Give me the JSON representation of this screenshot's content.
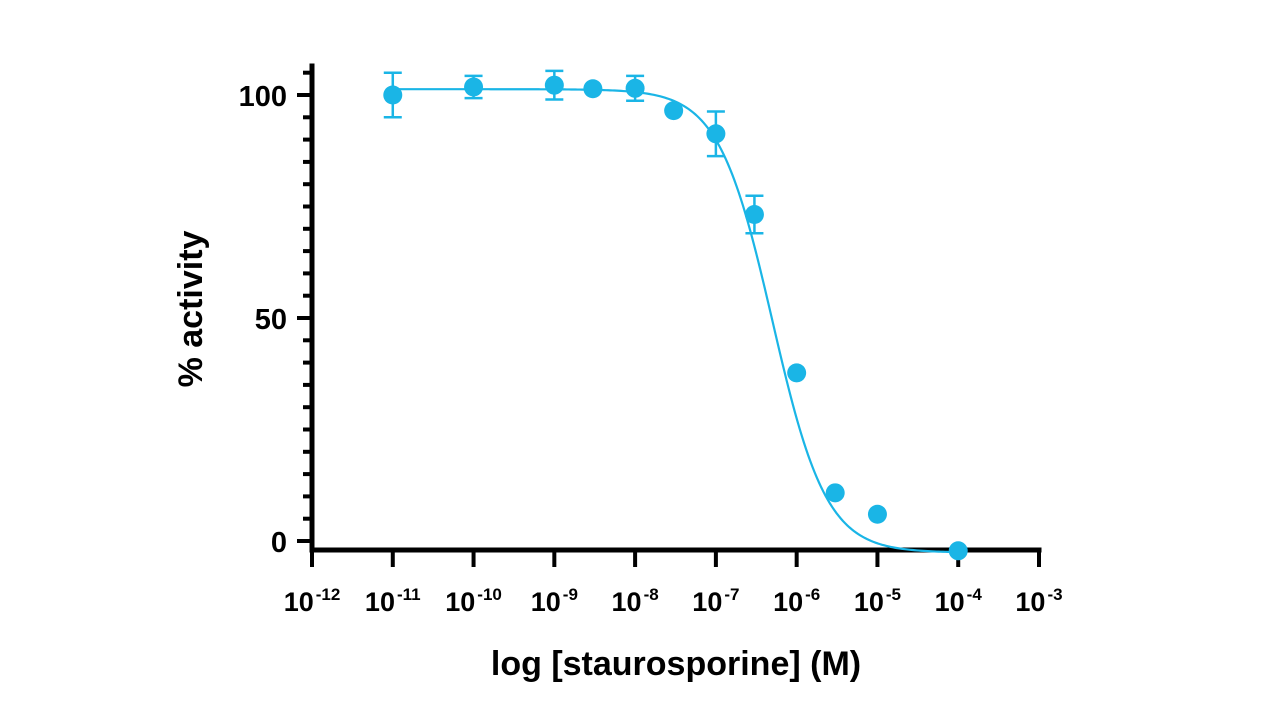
{
  "chart_data": {
    "type": "scatter",
    "title": "",
    "xlabel": "log [staurosporine] (M)",
    "ylabel": "% activity",
    "xscale": "log",
    "xlim": [
      1e-12,
      0.001
    ],
    "ylim": [
      0,
      100
    ],
    "x_ticks": [
      {
        "base": "10",
        "exp": "-12"
      },
      {
        "base": "10",
        "exp": "-11"
      },
      {
        "base": "10",
        "exp": "-10"
      },
      {
        "base": "10",
        "exp": "-9"
      },
      {
        "base": "10",
        "exp": "-8"
      },
      {
        "base": "10",
        "exp": "-7"
      },
      {
        "base": "10",
        "exp": "-6"
      },
      {
        "base": "10",
        "exp": "-5"
      },
      {
        "base": "10",
        "exp": "-4"
      },
      {
        "base": "10",
        "exp": "-3"
      }
    ],
    "y_ticks": [
      "0",
      "50",
      "100"
    ],
    "color": "#1ab5e6",
    "grid": false,
    "legend": "none",
    "series": [
      {
        "points": [
          {
            "x": 1e-11,
            "y": 100.0,
            "err": 5.0
          },
          {
            "x": 1e-10,
            "y": 101.8,
            "err": 2.5
          },
          {
            "x": 1e-09,
            "y": 102.2,
            "err": 3.2
          },
          {
            "x": 3e-09,
            "y": 101.4,
            "err": 0
          },
          {
            "x": 1e-08,
            "y": 101.5,
            "err": 2.8
          },
          {
            "x": 3e-08,
            "y": 96.5,
            "err": 0
          },
          {
            "x": 1e-07,
            "y": 91.3,
            "err": 5.0
          },
          {
            "x": 3e-07,
            "y": 73.2,
            "err": 4.2
          },
          {
            "x": 1e-06,
            "y": 37.7,
            "err": 0
          },
          {
            "x": 3e-06,
            "y": 10.8,
            "err": 0
          },
          {
            "x": 1e-05,
            "y": 6.0,
            "err": 0
          },
          {
            "x": 0.0001,
            "y": -2.2,
            "err": 0
          }
        ],
        "fit": {
          "model": "four-parameter logistic",
          "top": 101.3,
          "bottom": -2.6,
          "logIC50": -6.3,
          "hill": -1.3
        }
      }
    ]
  }
}
